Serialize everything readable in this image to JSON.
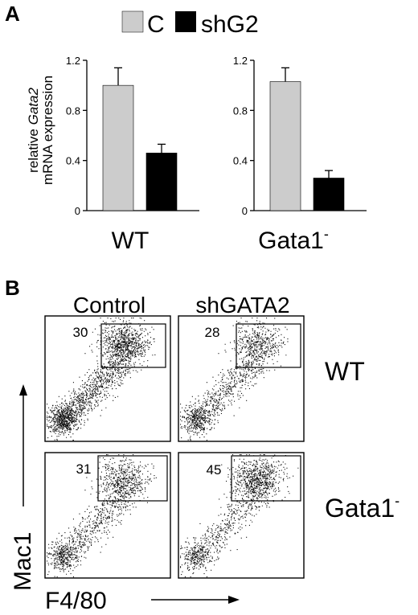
{
  "figure": {
    "panel_a_label": "A",
    "panel_b_label": "B",
    "colors": {
      "control_fill": "#cccccc",
      "shG2_fill": "#000000",
      "axis": "#000000"
    }
  },
  "chart_data": [
    {
      "type": "bar",
      "categories": [
        "C",
        "shG2"
      ],
      "group_label": "WT",
      "legend": [
        "C",
        "shG2"
      ],
      "ylabel_parts": [
        "relative ",
        "Gata2",
        "mRNA expression"
      ],
      "ylim": [
        0,
        1.2
      ],
      "yticks": [
        "0",
        "0.4",
        "0.8",
        "1.2"
      ],
      "values": [
        1.0,
        0.46
      ],
      "errors": [
        0.14,
        0.07
      ]
    },
    {
      "type": "bar",
      "categories": [
        "C",
        "shG2"
      ],
      "group_label": "Gata1",
      "group_label_sup": "-",
      "ylim": [
        0,
        1.2
      ],
      "yticks": [
        "0",
        "0.4",
        "0.8",
        "1.2"
      ],
      "values": [
        1.03,
        0.26
      ],
      "errors": [
        0.11,
        0.06
      ]
    },
    {
      "type": "scatter",
      "description": "flow cytometry density plots, 2x2 grid",
      "columns": [
        "Control",
        "shGATA2"
      ],
      "rows": [
        "WT",
        "Gata1"
      ],
      "row_sup": [
        "",
        "-"
      ],
      "x_axis": "F4/80",
      "y_axis": "Mac1",
      "gate_percentages": [
        [
          "30",
          "28"
        ],
        [
          "31",
          "45"
        ]
      ]
    }
  ]
}
